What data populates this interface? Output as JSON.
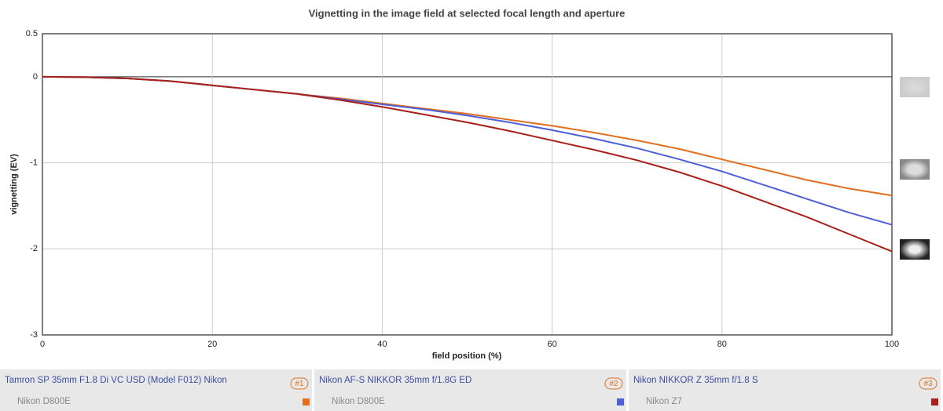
{
  "chart_data": {
    "type": "line",
    "title": "Vignetting in the image field at selected focal length and aperture",
    "x_label": "field position (%)",
    "y_label": "vignetting (EV)",
    "x": [
      0,
      5,
      10,
      15,
      20,
      25,
      30,
      35,
      40,
      45,
      50,
      55,
      60,
      65,
      70,
      75,
      80,
      85,
      90,
      95,
      100
    ],
    "xlim": [
      0,
      100
    ],
    "xticks": [
      0,
      20,
      40,
      60,
      80,
      100
    ],
    "ylim": [
      -3,
      0.5
    ],
    "yticks": [
      0.5,
      0,
      -1,
      -2,
      -3
    ],
    "grid": true,
    "series": [
      {
        "name": "Tamron SP 35mm F1.8 Di VC USD (Model F012) Nikon",
        "camera": "Nikon D800E",
        "badge": "#1",
        "color": "#e07020",
        "values": [
          0,
          -0.005,
          -0.02,
          -0.05,
          -0.1,
          -0.15,
          -0.2,
          -0.25,
          -0.31,
          -0.37,
          -0.43,
          -0.5,
          -0.57,
          -0.65,
          -0.74,
          -0.84,
          -0.96,
          -1.08,
          -1.2,
          -1.3,
          -1.38
        ]
      },
      {
        "name": "Nikon AF-S NIKKOR 35mm f/1.8G ED",
        "camera": "Nikon D800E",
        "badge": "#2",
        "color": "#4f5fd6",
        "values": [
          0,
          -0.005,
          -0.02,
          -0.05,
          -0.1,
          -0.15,
          -0.2,
          -0.26,
          -0.32,
          -0.38,
          -0.45,
          -0.53,
          -0.62,
          -0.72,
          -0.83,
          -0.96,
          -1.1,
          -1.26,
          -1.42,
          -1.58,
          -1.72
        ]
      },
      {
        "name": "Nikon NIKKOR Z 35mm f/1.8 S",
        "camera": "Nikon Z7",
        "badge": "#3",
        "color": "#a8201a",
        "values": [
          0,
          -0.005,
          -0.02,
          -0.05,
          -0.1,
          -0.15,
          -0.2,
          -0.27,
          -0.35,
          -0.44,
          -0.53,
          -0.63,
          -0.74,
          -0.85,
          -0.97,
          -1.11,
          -1.27,
          -1.45,
          -1.63,
          -1.83,
          -2.03
        ]
      }
    ]
  }
}
